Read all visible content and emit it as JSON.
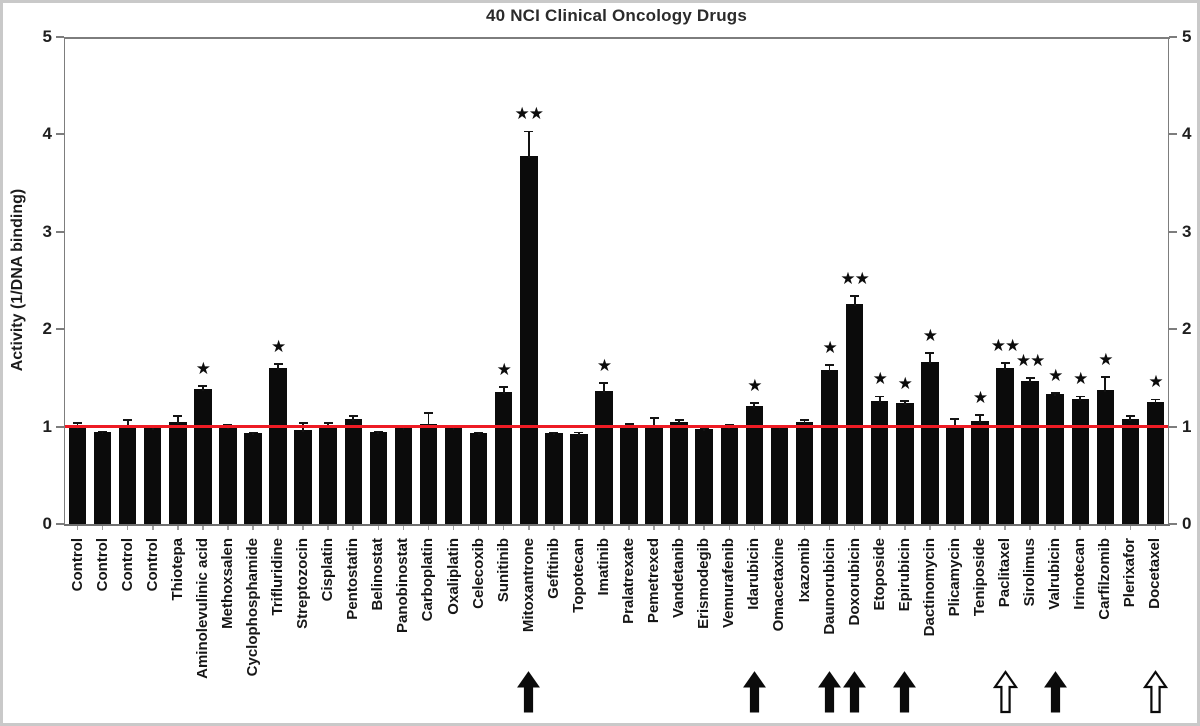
{
  "figure": {
    "title": "40 NCI Clinical Oncology Drugs",
    "y_axis_label": "Activity (1/DNA binding)"
  },
  "chart_data": {
    "type": "bar",
    "title": "40 NCI Clinical Oncology Drugs",
    "xlabel": "",
    "ylabel": "Activity (1/DNA binding)",
    "ylim": [
      0,
      5
    ],
    "yticks": [
      0,
      1,
      2,
      3,
      4,
      5
    ],
    "dual_y_axis": true,
    "grid": false,
    "legend": "none",
    "reference_line_y": 1.0,
    "bar_color": "#000000",
    "reference_line_color": "#ee1b24",
    "axis_color": "#7d7d7d",
    "categories": [
      "Control",
      "Control",
      "Control",
      "Control",
      "Thiotepa",
      "Aminolevulinic acid",
      "Methoxsalen",
      "Cyclophosphamide",
      "Trifluridine",
      "Streptozocin",
      "Cisplatin",
      "Pentostatin",
      "Belinostat",
      "Panobinostat",
      "Carboplatin",
      "Oxaliplatin",
      "Celecoxib",
      "Sunitinib",
      "Mitoxantrone",
      "Gefitinib",
      "Topotecan",
      "Imatinib",
      "Pralatrexate",
      "Pemetrexed",
      "Vandetanib",
      "Erismodegib",
      "Vemurafenib",
      "Idarubicin",
      "Omacetaxine",
      "Ixazomib",
      "Daunorubicin",
      "Doxorubicin",
      "Etoposide",
      "Epirubicin",
      "Dactinomycin",
      "Plicamycin",
      "Teniposide",
      "Paclitaxel",
      "Sirolimus",
      "Valrubicin",
      "Irinotecan",
      "Carfilzomib",
      "Plerixafor",
      "Docetaxel"
    ],
    "values": [
      1.0,
      0.94,
      1.01,
      0.99,
      1.05,
      1.39,
      1.0,
      0.93,
      1.6,
      0.96,
      1.02,
      1.08,
      0.94,
      0.99,
      1.03,
      0.99,
      0.93,
      1.36,
      3.78,
      0.93,
      0.92,
      1.37,
      1.01,
      1.02,
      1.05,
      0.98,
      1.0,
      1.21,
      0.99,
      1.05,
      1.58,
      2.26,
      1.26,
      1.24,
      1.66,
      1.01,
      1.06,
      1.6,
      1.47,
      1.33,
      1.28,
      1.38,
      1.08,
      1.25
    ],
    "errors": [
      0.04,
      0.01,
      0.06,
      0.02,
      0.06,
      0.03,
      0.02,
      0.01,
      0.04,
      0.08,
      0.02,
      0.03,
      0.01,
      0.02,
      0.11,
      0.01,
      0.01,
      0.05,
      0.25,
      0.01,
      0.02,
      0.08,
      0.02,
      0.07,
      0.02,
      0.01,
      0.02,
      0.03,
      0.02,
      0.02,
      0.05,
      0.08,
      0.05,
      0.02,
      0.1,
      0.07,
      0.06,
      0.05,
      0.03,
      0.02,
      0.03,
      0.13,
      0.03,
      0.03
    ],
    "significance": [
      "",
      "",
      "",
      "",
      "",
      "*",
      "",
      "",
      "*",
      "",
      "",
      "",
      "",
      "",
      "",
      "",
      "",
      "*",
      "**",
      "",
      "",
      "*",
      "",
      "",
      "",
      "",
      "",
      "*",
      "",
      "",
      "*",
      "**",
      "*",
      "*",
      "*",
      "",
      "*",
      "**",
      "**",
      "*",
      "*",
      "*",
      "",
      "*"
    ],
    "arrows": [
      "",
      "",
      "",
      "",
      "",
      "",
      "",
      "",
      "",
      "",
      "",
      "",
      "",
      "",
      "",
      "",
      "",
      "",
      "filled",
      "",
      "",
      "",
      "",
      "",
      "",
      "",
      "",
      "filled",
      "",
      "",
      "filled",
      "filled",
      "",
      "filled",
      "",
      "",
      "",
      "open",
      "",
      "filled",
      "",
      "",
      "",
      "open"
    ]
  }
}
